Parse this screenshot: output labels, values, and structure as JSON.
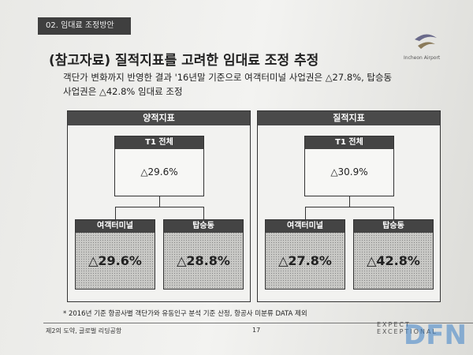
{
  "header": {
    "section": "02. 임대료 조정방안",
    "logo": "Incheon Airport"
  },
  "title": "(참고자료) 질적지표를 고려한 임대료 조정 추정",
  "subtitle": [
    "객단가 변화까지 반영한 결과 '16년말 기준으로 여객터미널 사업권은 △27.8%, 탑승동",
    "사업권은 △42.8% 임대료 조정"
  ],
  "panels": [
    {
      "title": "양적지표",
      "top": {
        "label": "T1 전체",
        "value": "△29.6%"
      },
      "children": [
        {
          "label": "여객터미널",
          "value": "△29.6%"
        },
        {
          "label": "탑승동",
          "value": "△28.8%"
        }
      ]
    },
    {
      "title": "질적지표",
      "top": {
        "label": "T1 전체",
        "value": "△30.9%"
      },
      "children": [
        {
          "label": "여객터미널",
          "value": "△27.8%"
        },
        {
          "label": "탑승동",
          "value": "△42.8%"
        }
      ]
    }
  ],
  "footnote": "* 2016년 기준 항공사별 객단가와 유동인구 분석 기준 산정, 항공사 미분류 DATA 제외",
  "footer": {
    "slogan": "제2의 도약, 글로벌 리딩공항",
    "page": "17",
    "tagline": "EXPECT EXCEPTIONAL",
    "watermark": "DFN"
  }
}
